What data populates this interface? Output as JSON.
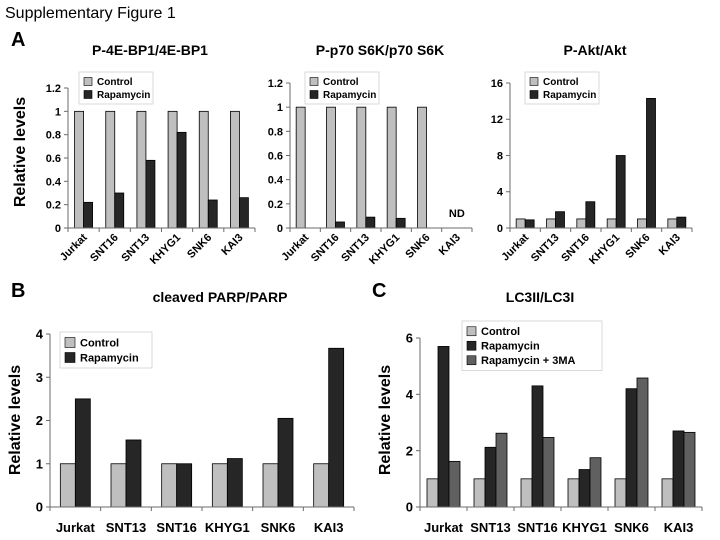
{
  "figure": {
    "title": "Supplementary Figure 1",
    "panels": [
      "A",
      "B",
      "C"
    ]
  },
  "style": {
    "axis_color": "#6b6b6b",
    "bar_outline": "#000000",
    "legend_border": "#d0d0d0"
  },
  "chart_data": [
    {
      "type": "bar",
      "title": "P-4E-BP1/4E-BP1",
      "xlabel": "",
      "ylabel": "Relative levels",
      "ylim": [
        0,
        1.2
      ],
      "yticks": [
        0,
        0.2,
        0.4,
        0.6,
        0.8,
        1,
        1.2
      ],
      "grid": false,
      "legend": "top-left",
      "categories": [
        "Jurkat",
        "SNT16",
        "SNT13",
        "KHYG1",
        "SNK6",
        "KAI3"
      ],
      "series": [
        {
          "name": "Control",
          "color": "#bfbfbf",
          "values": [
            1,
            1,
            1,
            1,
            1,
            1
          ]
        },
        {
          "name": "Rapamycin",
          "color": "#262626",
          "values": [
            0.22,
            0.3,
            0.58,
            0.82,
            0.24,
            0.26
          ]
        }
      ],
      "annotations": []
    },
    {
      "type": "bar",
      "title": "P-p70 S6K/p70 S6K",
      "xlabel": "",
      "ylabel": "",
      "ylim": [
        0,
        1.2
      ],
      "yticks": [
        0,
        0.2,
        0.4,
        0.6,
        0.8,
        1,
        1.2
      ],
      "grid": false,
      "legend": "top-left",
      "categories": [
        "Jurkat",
        "SNT16",
        "SNT13",
        "KHYG1",
        "SNK6",
        "KAI3"
      ],
      "series": [
        {
          "name": "Control",
          "color": "#bfbfbf",
          "values": [
            1,
            1,
            1,
            1,
            1,
            null
          ]
        },
        {
          "name": "Rapamycin",
          "color": "#262626",
          "values": [
            0,
            0.05,
            0.09,
            0.08,
            0,
            null
          ]
        }
      ],
      "annotations": [
        {
          "text": "ND",
          "category_index": 5
        }
      ]
    },
    {
      "type": "bar",
      "title": "P-Akt/Akt",
      "xlabel": "",
      "ylabel": "",
      "ylim": [
        0,
        16
      ],
      "yticks": [
        0,
        4,
        8,
        12,
        16
      ],
      "grid": false,
      "legend": "top-left",
      "categories": [
        "Jurkat",
        "SNT13",
        "SNT16",
        "KHYG1",
        "SNK6",
        "KAI3"
      ],
      "series": [
        {
          "name": "Control",
          "color": "#bfbfbf",
          "values": [
            1,
            1,
            1,
            1,
            1,
            1
          ]
        },
        {
          "name": "Rapamycin",
          "color": "#262626",
          "values": [
            0.9,
            1.8,
            2.9,
            8.0,
            14.3,
            1.2
          ]
        }
      ],
      "annotations": []
    },
    {
      "type": "bar",
      "title": "cleaved PARP/PARP",
      "xlabel": "",
      "ylabel": "Relative levels",
      "ylim": [
        0,
        4
      ],
      "yticks": [
        0,
        1,
        2,
        3,
        4
      ],
      "grid": false,
      "legend": "top-left",
      "categories": [
        "Jurkat",
        "SNT13",
        "SNT16",
        "KHYG1",
        "SNK6",
        "KAI3"
      ],
      "series": [
        {
          "name": "Control",
          "color": "#bfbfbf",
          "values": [
            1,
            1,
            1,
            1,
            1,
            1
          ]
        },
        {
          "name": "Rapamycin",
          "color": "#262626",
          "values": [
            2.5,
            1.55,
            1.0,
            1.12,
            2.05,
            3.67
          ]
        }
      ],
      "annotations": []
    },
    {
      "type": "bar",
      "title": "LC3II/LC3I",
      "xlabel": "",
      "ylabel": "Relative levels",
      "ylim": [
        0,
        6
      ],
      "yticks": [
        0,
        2,
        4,
        6
      ],
      "grid": false,
      "legend": "top-left",
      "categories": [
        "Jurkat",
        "SNT13",
        "SNT16",
        "KHYG1",
        "SNK6",
        "KAI3"
      ],
      "series": [
        {
          "name": "Control",
          "color": "#bfbfbf",
          "values": [
            1,
            1,
            1,
            1,
            1,
            1
          ]
        },
        {
          "name": "Rapamycin",
          "color": "#262626",
          "values": [
            5.7,
            2.12,
            4.3,
            1.33,
            4.2,
            2.7
          ]
        },
        {
          "name": "Rapamycin + 3MA",
          "color": "#606060",
          "values": [
            1.62,
            2.62,
            2.47,
            1.75,
            4.58,
            2.65
          ]
        }
      ],
      "annotations": []
    }
  ]
}
